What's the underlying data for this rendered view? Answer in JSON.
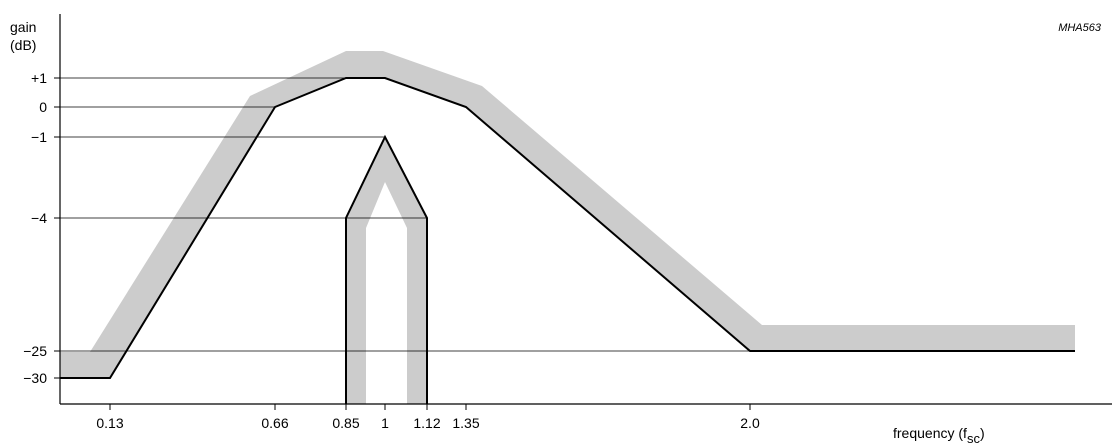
{
  "figure_id": "MHA563",
  "chart_data": {
    "type": "line",
    "ylabel": [
      "gain",
      "(dB)"
    ],
    "xlabel": "frequency (f",
    "xlabel_subscript": "sc",
    "xlabel_suffix": ")",
    "y_ticks": [
      {
        "label": "+1",
        "value": 1
      },
      {
        "label": "0",
        "value": 0
      },
      {
        "label": "−1",
        "value": -1
      },
      {
        "label": "−4",
        "value": -4
      },
      {
        "label": "−25",
        "value": -25
      },
      {
        "label": "−30",
        "value": -30
      }
    ],
    "x_ticks": [
      {
        "label": "0.13",
        "value": 0.13
      },
      {
        "label": "0.66",
        "value": 0.66
      },
      {
        "label": "0.85",
        "value": 0.85
      },
      {
        "label": "1",
        "value": 1
      },
      {
        "label": "1.12",
        "value": 1.12
      },
      {
        "label": "1.35",
        "value": 1.35
      },
      {
        "label": "2.0",
        "value": 2.0
      }
    ],
    "series": [
      {
        "role": "lower_limit_passband",
        "color": "#000000",
        "points": [
          [
            0.0,
            -30
          ],
          [
            0.13,
            -30
          ],
          [
            0.66,
            0
          ],
          [
            0.85,
            1
          ],
          [
            1.0,
            1
          ],
          [
            1.35,
            0
          ],
          [
            2.0,
            -25
          ],
          [
            2.4,
            -25
          ]
        ]
      },
      {
        "role": "lower_limit_notch",
        "color": "#000000",
        "points": [
          [
            0.85,
            -40
          ],
          [
            0.85,
            -4
          ],
          [
            1.0,
            -1
          ],
          [
            1.12,
            -4
          ],
          [
            1.12,
            -40
          ]
        ]
      },
      {
        "role": "tolerance_band_passband",
        "color": "#cccccc"
      },
      {
        "role": "tolerance_band_notch",
        "color": "#cccccc"
      }
    ]
  }
}
